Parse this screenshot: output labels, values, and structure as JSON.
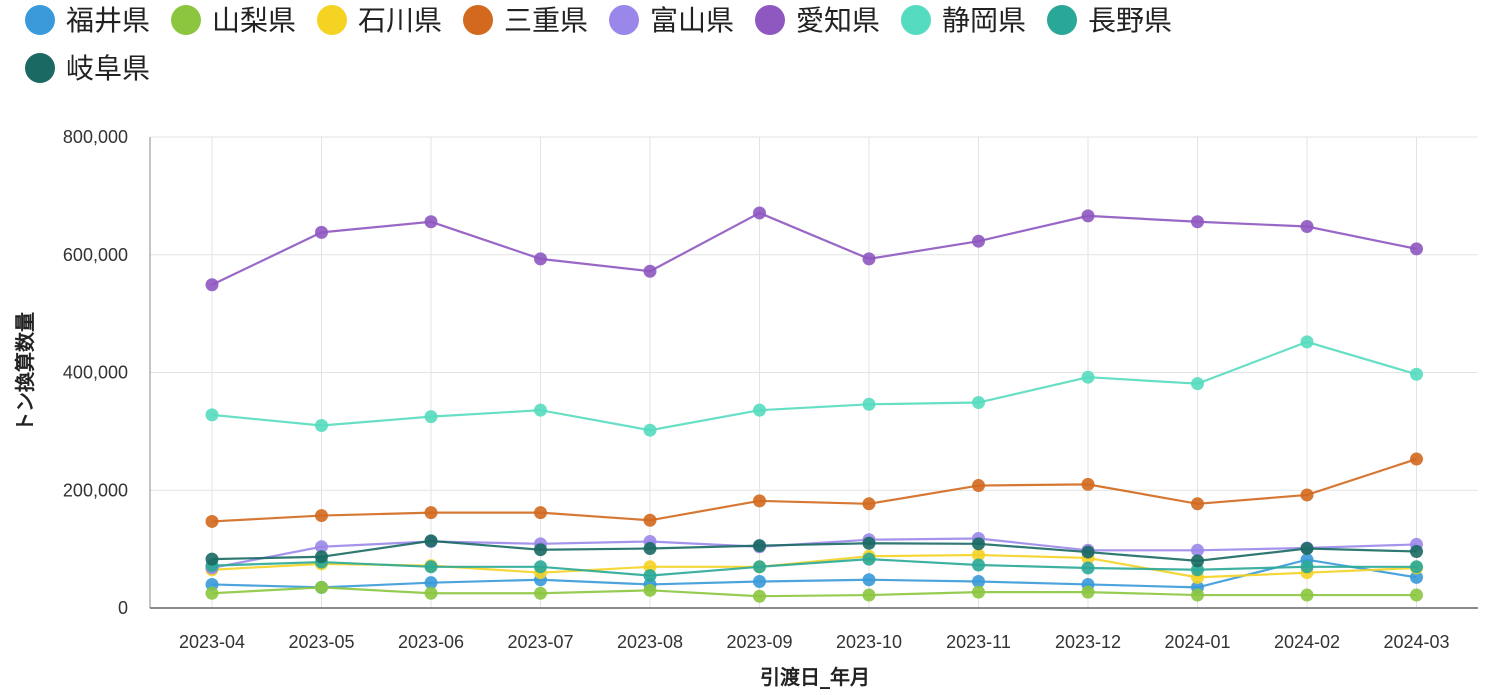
{
  "chart_data": {
    "type": "line",
    "xlabel": "引渡日_年月",
    "ylabel": "トン換算数量",
    "categories": [
      "2023-04",
      "2023-05",
      "2023-06",
      "2023-07",
      "2023-08",
      "2023-09",
      "2023-10",
      "2023-11",
      "2023-12",
      "2024-01",
      "2024-02",
      "2024-03"
    ],
    "ylim": [
      0,
      800000
    ],
    "yticks": [
      0,
      200000,
      400000,
      600000,
      800000
    ],
    "ytick_labels": [
      "0",
      "200,000",
      "400,000",
      "600,000",
      "800,000"
    ],
    "grid": true,
    "legend_position": "top-left",
    "series": [
      {
        "name": "福井県",
        "color": "#3a9ad9",
        "values": [
          40000,
          35000,
          43000,
          48000,
          40000,
          45000,
          48000,
          45000,
          40000,
          35000,
          82000,
          52000
        ]
      },
      {
        "name": "山梨県",
        "color": "#8cc63f",
        "values": [
          25000,
          35000,
          25000,
          25000,
          30000,
          20000,
          22000,
          27000,
          27000,
          22000,
          22000,
          22000
        ]
      },
      {
        "name": "石川県",
        "color": "#f5d323",
        "values": [
          65000,
          75000,
          72000,
          60000,
          70000,
          70000,
          88000,
          90000,
          85000,
          52000,
          60000,
          68000
        ]
      },
      {
        "name": "三重県",
        "color": "#d2691e",
        "values": [
          147000,
          157000,
          162000,
          162000,
          149000,
          182000,
          177000,
          208000,
          210000,
          177000,
          192000,
          253000
        ]
      },
      {
        "name": "富山県",
        "color": "#9b87ea",
        "values": [
          68000,
          104000,
          113000,
          109000,
          113000,
          104000,
          116000,
          118000,
          98000,
          98000,
          102000,
          108000
        ]
      },
      {
        "name": "愛知県",
        "color": "#8e58c0",
        "values": [
          549000,
          638000,
          656000,
          593000,
          572000,
          671000,
          593000,
          623000,
          666000,
          656000,
          648000,
          610000
        ]
      },
      {
        "name": "静岡県",
        "color": "#55dbbf",
        "values": [
          328000,
          310000,
          325000,
          336000,
          302000,
          336000,
          346000,
          349000,
          392000,
          381000,
          452000,
          397000
        ]
      },
      {
        "name": "長野県",
        "color": "#2aa897",
        "values": [
          72000,
          78000,
          70000,
          70000,
          55000,
          70000,
          83000,
          73000,
          68000,
          65000,
          70000,
          70000
        ]
      },
      {
        "name": "岐阜県",
        "color": "#1a6a63",
        "values": [
          83000,
          87000,
          114000,
          99000,
          101000,
          106000,
          110000,
          109000,
          95000,
          80000,
          101000,
          96000
        ]
      }
    ]
  }
}
